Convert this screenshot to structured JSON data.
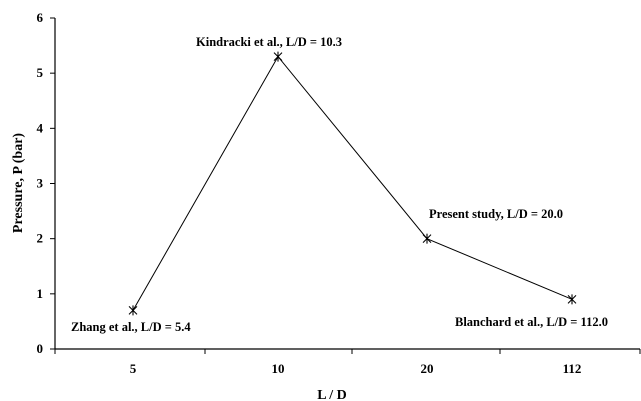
{
  "chart_data": {
    "type": "line",
    "title": "",
    "xlabel": "L / D",
    "ylabel": "Pressure, P (bar)",
    "categories": [
      "5",
      "10",
      "20",
      "112"
    ],
    "ylim": [
      0,
      6
    ],
    "yticks": [
      "0",
      "1",
      "2",
      "3",
      "4",
      "5",
      "6"
    ],
    "grid": false,
    "legend": "none",
    "series": [
      {
        "values": [
          0.7,
          5.3,
          2.0,
          0.9
        ],
        "marker": "asterisk",
        "color": "#000000"
      }
    ],
    "annotations": [
      {
        "text": "Zhang et al., L/D = 5.4",
        "category": "5",
        "value": 0.7
      },
      {
        "text": "Kindracki et al., L/D = 10.3",
        "category": "10",
        "value": 5.3
      },
      {
        "text": "Present study, L/D = 20.0",
        "category": "20",
        "value": 2.0
      },
      {
        "text": "Blanchard et al., L/D = 112.0",
        "category": "112",
        "value": 0.9
      }
    ]
  }
}
